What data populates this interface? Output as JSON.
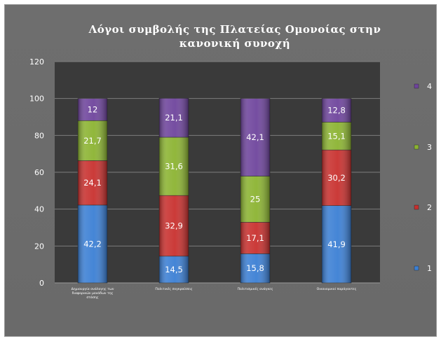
{
  "chart_data": {
    "type": "bar",
    "stacked": true,
    "title": "Λόγοι συμβολής της Πλατείας Ομονοίας στην κανονική συνοχή",
    "categories": [
      "Δημιουργία ανάλογης των διαφορικών μονάδων της στάσης",
      "Πολιτικές συγκρούσεις",
      "Πολιτισμικές ανάγκες",
      "Οικονομικοί παράγοντες"
    ],
    "series": [
      {
        "name": "1",
        "values": [
          42.2,
          14.5,
          15.8,
          41.9
        ],
        "color": "#3b7fd4"
      },
      {
        "name": "2",
        "values": [
          24.1,
          32.9,
          17.1,
          30.2
        ],
        "color": "#c8302e"
      },
      {
        "name": "3",
        "values": [
          21.7,
          31.6,
          25,
          15.1
        ],
        "color": "#8bb331"
      },
      {
        "name": "4",
        "values": [
          12,
          21.1,
          42.1,
          12.8
        ],
        "color": "#6e449c"
      }
    ],
    "data_labels": [
      [
        "42,2",
        "14,5",
        "15,8",
        "41,9"
      ],
      [
        "24,1",
        "32,9",
        "17,1",
        "30,2"
      ],
      [
        "21,7",
        "31,6",
        "25",
        "15,1"
      ],
      [
        "12",
        "21,1",
        "42,1",
        "12,8"
      ]
    ],
    "ylim": [
      0,
      120
    ],
    "yticks": [
      "0",
      "20",
      "40",
      "60",
      "80",
      "100",
      "120"
    ],
    "grid": true,
    "legend_position": "right",
    "plot_background": "#3a3a3a"
  }
}
